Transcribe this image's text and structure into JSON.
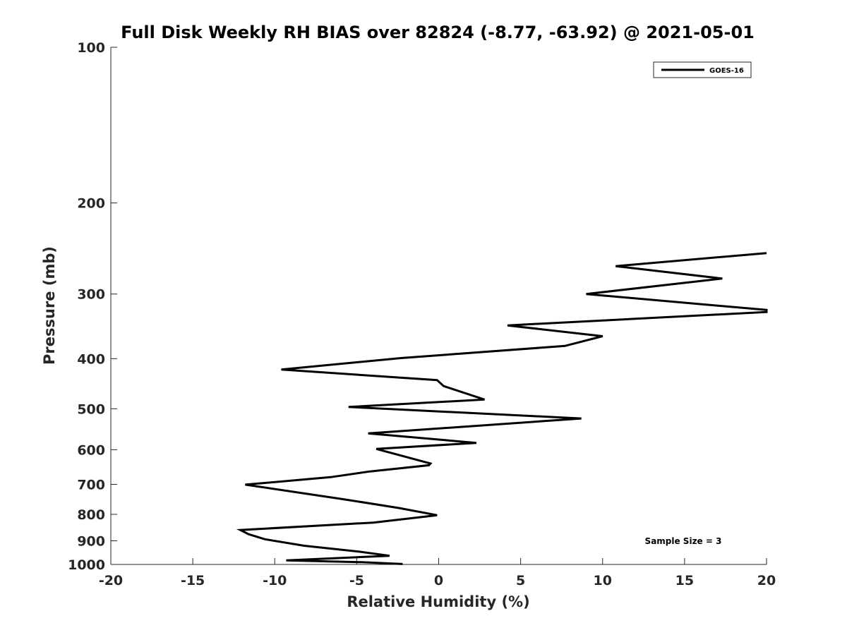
{
  "chart_data": {
    "type": "line",
    "title": "Full Disk Weekly RH BIAS over 82824 (-8.77, -63.92) @ 2021-05-01",
    "xlabel": "Relative Humidity (%)",
    "ylabel": "Pressure (mb)",
    "xlim": [
      -20,
      20
    ],
    "ylim": [
      100,
      1000
    ],
    "y_scale": "log",
    "y_reversed": true,
    "xticks": [
      "-20",
      "-15",
      "-10",
      "-5",
      "0",
      "5",
      "10",
      "15",
      "20"
    ],
    "yticks": [
      "100",
      "200",
      "300",
      "400",
      "500",
      "600",
      "700",
      "800",
      "900",
      "1000"
    ],
    "grid": false,
    "legend": "top-right",
    "annotation": "Sample Size = 3",
    "colors": {
      "line": "#000000",
      "axis": "#262626"
    },
    "series": [
      {
        "name": "GOES-16",
        "x": [
          20.0,
          10.8,
          17.3,
          9.0,
          20.0,
          20.0,
          4.2,
          10.0,
          7.7,
          -2.3,
          -9.6,
          -0.1,
          0.3,
          2.8,
          -5.5,
          8.7,
          -4.3,
          2.3,
          -3.8,
          -0.5,
          -0.6,
          -4.2,
          -6.6,
          -11.8,
          -5.8,
          -2.4,
          -0.1,
          -4.0,
          -12.1,
          -11.6,
          -10.6,
          -8.2,
          -4.8,
          -3.0,
          -9.3,
          -4.7,
          -2.2
        ],
        "y": [
          250,
          265,
          280,
          300,
          322,
          325,
          345,
          362,
          378,
          399,
          420,
          440,
          452,
          480,
          496,
          522,
          558,
          582,
          598,
          638,
          643,
          661,
          678,
          701,
          748,
          778,
          803,
          830,
          858,
          874,
          894,
          920,
          945,
          962,
          982,
          990,
          998
        ]
      }
    ]
  }
}
